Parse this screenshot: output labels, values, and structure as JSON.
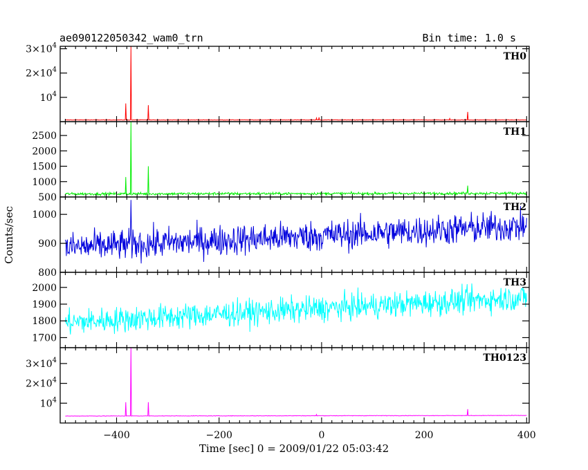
{
  "header": {
    "title": "ae090122050342_wam0_trn",
    "bin_time": "Bin time: 1.0 s"
  },
  "chart_data": {
    "type": "line",
    "title": "ae090122050342_wam0_trn",
    "xlabel": "Time [sec] 0 = 2009/01/22 05:03:42",
    "ylabel": "Counts/sec",
    "xlim": [
      -510,
      405
    ],
    "x_ticks": [
      -400,
      -200,
      0,
      200,
      400
    ],
    "x_tick_labels": [
      "−400",
      "−200",
      "0",
      "200",
      "400"
    ],
    "grid": false,
    "panels": [
      {
        "name": "TH0",
        "color": "#ff0000",
        "ylim": [
          0,
          31000
        ],
        "ticks": [
          {
            "value": 30000,
            "mant": "3×10",
            "exp": "4"
          },
          {
            "value": 20000,
            "mant": "2×10",
            "exp": "4"
          },
          {
            "value": 10000,
            "mant": "10",
            "exp": "4"
          }
        ],
        "baseline": 700,
        "noise": 60,
        "trend": 0,
        "spikes": [
          [
            -382,
            7500
          ],
          [
            -372,
            31000
          ],
          [
            -338,
            6800
          ],
          [
            -10,
            1500
          ],
          [
            -5,
            1800
          ],
          [
            250,
            1300
          ],
          [
            285,
            4000
          ]
        ]
      },
      {
        "name": "TH1",
        "color": "#00ee00",
        "ylim": [
          500,
          2950
        ],
        "ticks": [
          {
            "value": 2500,
            "label": "2500"
          },
          {
            "value": 2000,
            "label": "2000"
          },
          {
            "value": 1500,
            "label": "1500"
          },
          {
            "value": 1000,
            "label": "1000"
          },
          {
            "value": 500,
            "label": "500"
          }
        ],
        "baseline": 600,
        "noise": 30,
        "trend": 20,
        "spikes": [
          [
            -382,
            1150
          ],
          [
            -372,
            2950
          ],
          [
            -338,
            1500
          ],
          [
            285,
            870
          ]
        ]
      },
      {
        "name": "TH2",
        "color": "#0000dd",
        "ylim": [
          800,
          1060
        ],
        "ticks": [
          {
            "value": 1000,
            "label": "1000"
          },
          {
            "value": 900,
            "label": "900"
          },
          {
            "value": 800,
            "label": "800"
          }
        ],
        "baseline": 885,
        "noise": 38,
        "trend": 75,
        "spikes": [
          [
            -372,
            1050
          ]
        ]
      },
      {
        "name": "TH3",
        "color": "#00ffff",
        "ylim": [
          1640,
          2090
        ],
        "ticks": [
          {
            "value": 2000,
            "label": "2000"
          },
          {
            "value": 1900,
            "label": "1900"
          },
          {
            "value": 1800,
            "label": "1800"
          },
          {
            "value": 1700,
            "label": "1700"
          }
        ],
        "baseline": 1790,
        "noise": 55,
        "trend": 150,
        "spikes": []
      },
      {
        "name": "TH0123",
        "color": "#ff00ff",
        "ylim": [
          0,
          38000
        ],
        "ticks": [
          {
            "value": 30000,
            "mant": "3×10",
            "exp": "4"
          },
          {
            "value": 20000,
            "mant": "2×10",
            "exp": "4"
          },
          {
            "value": 10000,
            "mant": "10",
            "exp": "4"
          }
        ],
        "baseline": 3500,
        "noise": 90,
        "trend": 300,
        "spikes": [
          [
            -382,
            10500
          ],
          [
            -372,
            38000
          ],
          [
            -338,
            10500
          ],
          [
            -10,
            4300
          ],
          [
            285,
            7000
          ]
        ]
      }
    ]
  }
}
